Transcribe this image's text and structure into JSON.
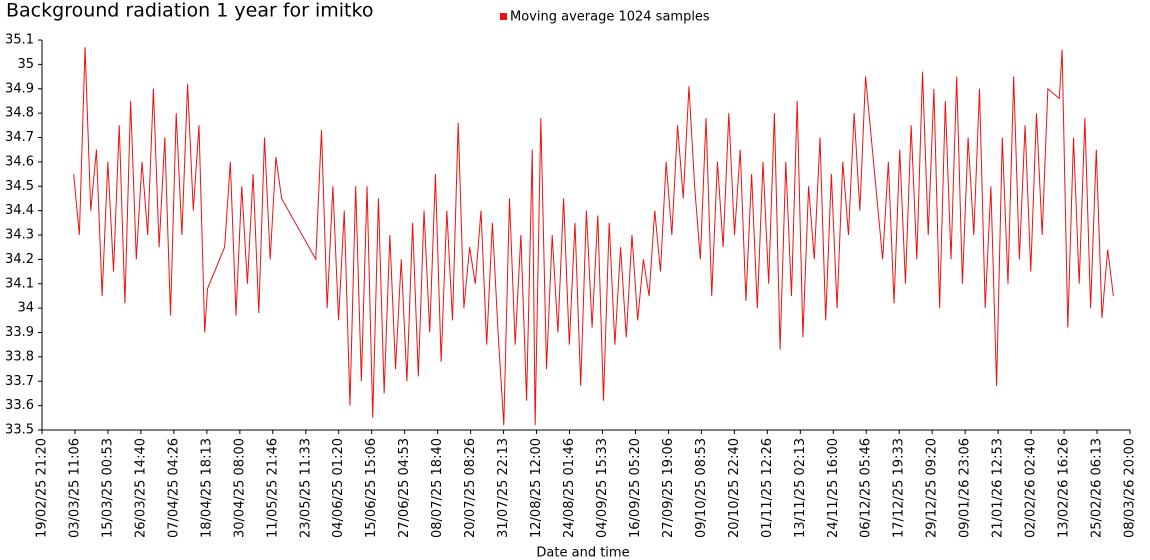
{
  "chart_data": {
    "type": "line",
    "title": "Background radiation 1 year for imitko",
    "xlabel": "Date and time",
    "legend": "top",
    "xlim": [
      "2025-02-19T21:20Z",
      "2026-03-08T20:00Z"
    ],
    "ylim": [
      33.5,
      35.1
    ],
    "yticks": [
      33.5,
      33.6,
      33.7,
      33.8,
      33.9,
      34,
      34.1,
      34.2,
      34.3,
      34.4,
      34.5,
      34.6,
      34.7,
      34.8,
      34.9,
      35,
      35.1
    ],
    "xticks": [
      {
        "value": "2025-02-19T21:20Z",
        "label": "19/02/25 21:20"
      },
      {
        "value": "2025-03-03T11:06Z",
        "label": "03/03/25 11:06"
      },
      {
        "value": "2025-03-15T00:53Z",
        "label": "15/03/25 00:53"
      },
      {
        "value": "2025-03-26T14:40Z",
        "label": "26/03/25 14:40"
      },
      {
        "value": "2025-04-07T04:26Z",
        "label": "07/04/25 04:26"
      },
      {
        "value": "2025-04-18T18:13Z",
        "label": "18/04/25 18:13"
      },
      {
        "value": "2025-04-30T08:00Z",
        "label": "30/04/25 08:00"
      },
      {
        "value": "2025-05-11T21:46Z",
        "label": "11/05/25 21:46"
      },
      {
        "value": "2025-05-23T11:33Z",
        "label": "23/05/25 11:33"
      },
      {
        "value": "2025-06-04T01:20Z",
        "label": "04/06/25 01:20"
      },
      {
        "value": "2025-06-15T15:06Z",
        "label": "15/06/25 15:06"
      },
      {
        "value": "2025-06-27T04:53Z",
        "label": "27/06/25 04:53"
      },
      {
        "value": "2025-07-08T18:40Z",
        "label": "08/07/25 18:40"
      },
      {
        "value": "2025-07-20T08:26Z",
        "label": "20/07/25 08:26"
      },
      {
        "value": "2025-07-31T22:13Z",
        "label": "31/07/25 22:13"
      },
      {
        "value": "2025-08-12T12:00Z",
        "label": "12/08/25 12:00"
      },
      {
        "value": "2025-08-24T01:46Z",
        "label": "24/08/25 01:46"
      },
      {
        "value": "2025-09-04T15:33Z",
        "label": "04/09/25 15:33"
      },
      {
        "value": "2025-09-16T05:20Z",
        "label": "16/09/25 05:20"
      },
      {
        "value": "2025-09-27T19:06Z",
        "label": "27/09/25 19:06"
      },
      {
        "value": "2025-10-09T08:53Z",
        "label": "09/10/25 08:53"
      },
      {
        "value": "2025-10-20T22:40Z",
        "label": "20/10/25 22:40"
      },
      {
        "value": "2025-11-01T12:26Z",
        "label": "01/11/25 12:26"
      },
      {
        "value": "2025-11-13T02:13Z",
        "label": "13/11/25 02:13"
      },
      {
        "value": "2025-11-24T16:00Z",
        "label": "24/11/25 16:00"
      },
      {
        "value": "2025-12-06T05:46Z",
        "label": "06/12/25 05:46"
      },
      {
        "value": "2025-12-17T19:33Z",
        "label": "17/12/25 19:33"
      },
      {
        "value": "2025-12-29T09:20Z",
        "label": "29/12/25 09:20"
      },
      {
        "value": "2026-01-09T23:06Z",
        "label": "09/01/26 23:06"
      },
      {
        "value": "2026-01-21T12:53Z",
        "label": "21/01/26 12:53"
      },
      {
        "value": "2026-02-02T02:40Z",
        "label": "02/02/26 02:40"
      },
      {
        "value": "2026-02-13T16:26Z",
        "label": "13/02/26 16:26"
      },
      {
        "value": "2026-02-25T06:13Z",
        "label": "25/02/26 06:13"
      },
      {
        "value": "2026-03-08T20:00Z",
        "label": "08/03/26 20:00"
      }
    ],
    "x": [
      "2025-03-03",
      "2025-03-05",
      "2025-03-07",
      "2025-03-09",
      "2025-03-11",
      "2025-03-13",
      "2025-03-15",
      "2025-03-17",
      "2025-03-19",
      "2025-03-21",
      "2025-03-23",
      "2025-03-25",
      "2025-03-27",
      "2025-03-29",
      "2025-03-31",
      "2025-04-02",
      "2025-04-04",
      "2025-04-06",
      "2025-04-08",
      "2025-04-10",
      "2025-04-12",
      "2025-04-14",
      "2025-04-16",
      "2025-04-18",
      "2025-04-19",
      "2025-04-25",
      "2025-04-27",
      "2025-04-29",
      "2025-05-01",
      "2025-05-03",
      "2025-05-05",
      "2025-05-07",
      "2025-05-09",
      "2025-05-11",
      "2025-05-13",
      "2025-05-15",
      "2025-05-27",
      "2025-05-29",
      "2025-05-31",
      "2025-06-02",
      "2025-06-04",
      "2025-06-06",
      "2025-06-08",
      "2025-06-10",
      "2025-06-12",
      "2025-06-14",
      "2025-06-16",
      "2025-06-18",
      "2025-06-20",
      "2025-06-22",
      "2025-06-24",
      "2025-06-26",
      "2025-06-28",
      "2025-06-30",
      "2025-07-02",
      "2025-07-04",
      "2025-07-06",
      "2025-07-08",
      "2025-07-10",
      "2025-07-12",
      "2025-07-14",
      "2025-07-16",
      "2025-07-18",
      "2025-07-20",
      "2025-07-22",
      "2025-07-24",
      "2025-07-26",
      "2025-07-28",
      "2025-07-30",
      "2025-08-01",
      "2025-08-03",
      "2025-08-05",
      "2025-08-07",
      "2025-08-09",
      "2025-08-11",
      "2025-08-12",
      "2025-08-14",
      "2025-08-16",
      "2025-08-18",
      "2025-08-20",
      "2025-08-22",
      "2025-08-24",
      "2025-08-26",
      "2025-08-28",
      "2025-08-30",
      "2025-09-01",
      "2025-09-03",
      "2025-09-05",
      "2025-09-07",
      "2025-09-09",
      "2025-09-11",
      "2025-09-13",
      "2025-09-15",
      "2025-09-17",
      "2025-09-19",
      "2025-09-21",
      "2025-09-23",
      "2025-09-25",
      "2025-09-27",
      "2025-09-29",
      "2025-10-01",
      "2025-10-03",
      "2025-10-05",
      "2025-10-07",
      "2025-10-09",
      "2025-10-11",
      "2025-10-13",
      "2025-10-15",
      "2025-10-17",
      "2025-10-19",
      "2025-10-21",
      "2025-10-23",
      "2025-10-25",
      "2025-10-27",
      "2025-10-29",
      "2025-10-31",
      "2025-11-02",
      "2025-11-04",
      "2025-11-06",
      "2025-11-08",
      "2025-11-10",
      "2025-11-12",
      "2025-11-14",
      "2025-11-16",
      "2025-11-18",
      "2025-11-20",
      "2025-11-22",
      "2025-11-24",
      "2025-11-26",
      "2025-11-28",
      "2025-11-30",
      "2025-12-02",
      "2025-12-04",
      "2025-12-06",
      "2025-12-08",
      "2025-12-12",
      "2025-12-14",
      "2025-12-16",
      "2025-12-18",
      "2025-12-20",
      "2025-12-22",
      "2025-12-24",
      "2025-12-26",
      "2025-12-28",
      "2025-12-30",
      "2026-01-01",
      "2026-01-03",
      "2026-01-05",
      "2026-01-07",
      "2026-01-09",
      "2026-01-11",
      "2026-01-13",
      "2026-01-15",
      "2026-01-17",
      "2026-01-19",
      "2026-01-21",
      "2026-01-23",
      "2026-01-25",
      "2026-01-27",
      "2026-01-29",
      "2026-01-31",
      "2026-02-02",
      "2026-02-04",
      "2026-02-06",
      "2026-02-08",
      "2026-02-12",
      "2026-02-13",
      "2026-02-15",
      "2026-02-17",
      "2026-02-19",
      "2026-02-21",
      "2026-02-23",
      "2026-02-25",
      "2026-02-27",
      "2026-03-01",
      "2026-03-03"
    ],
    "series": [
      {
        "name": "Moving average 1024 samples",
        "color": "#ee1111",
        "values": [
          34.55,
          34.3,
          35.07,
          34.4,
          34.65,
          34.05,
          34.6,
          34.15,
          34.75,
          34.02,
          34.85,
          34.2,
          34.6,
          34.3,
          34.9,
          34.25,
          34.7,
          33.97,
          34.8,
          34.3,
          34.92,
          34.4,
          34.75,
          33.9,
          34.08,
          34.25,
          34.6,
          33.97,
          34.5,
          34.1,
          34.55,
          33.98,
          34.7,
          34.2,
          34.62,
          34.45,
          34.2,
          34.73,
          34.0,
          34.5,
          33.95,
          34.4,
          33.6,
          34.5,
          33.7,
          34.5,
          33.55,
          34.45,
          33.65,
          34.3,
          33.75,
          34.2,
          33.7,
          34.35,
          33.72,
          34.4,
          33.9,
          34.55,
          33.78,
          34.4,
          33.95,
          34.76,
          34.0,
          34.25,
          34.1,
          34.4,
          33.85,
          34.35,
          33.9,
          33.52,
          34.45,
          33.85,
          34.3,
          33.62,
          34.65,
          33.52,
          34.78,
          33.75,
          34.3,
          33.9,
          34.45,
          33.85,
          34.35,
          33.68,
          34.4,
          33.92,
          34.38,
          33.62,
          34.35,
          33.85,
          34.25,
          33.88,
          34.3,
          33.95,
          34.2,
          34.05,
          34.4,
          34.15,
          34.6,
          34.3,
          34.75,
          34.45,
          34.91,
          34.5,
          34.2,
          34.78,
          34.05,
          34.6,
          34.25,
          34.8,
          34.3,
          34.65,
          34.03,
          34.55,
          34.0,
          34.6,
          34.1,
          34.8,
          33.83,
          34.6,
          34.05,
          34.85,
          33.88,
          34.5,
          34.2,
          34.7,
          33.95,
          34.55,
          34.0,
          34.6,
          34.3,
          34.8,
          34.4,
          34.95,
          34.7,
          34.2,
          34.6,
          34.02,
          34.65,
          34.1,
          34.75,
          34.2,
          34.97,
          34.3,
          34.9,
          34.0,
          34.85,
          34.2,
          34.95,
          34.1,
          34.7,
          34.3,
          34.9,
          34.0,
          34.5,
          33.68,
          34.7,
          34.1,
          34.95,
          34.2,
          34.75,
          34.15,
          34.8,
          34.3,
          34.9,
          34.86,
          35.06,
          33.92,
          34.7,
          34.1,
          34.78,
          34.0,
          34.65,
          33.96,
          34.24,
          34.05
        ]
      }
    ]
  }
}
